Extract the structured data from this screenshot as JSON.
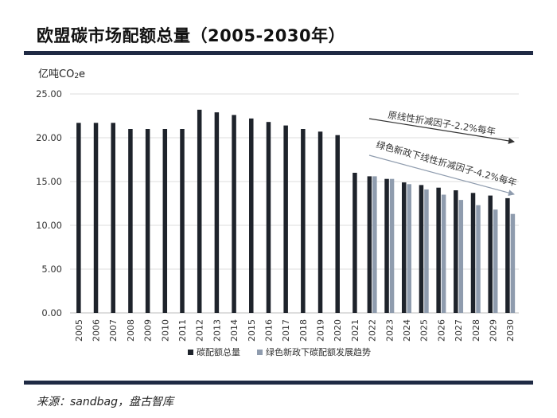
{
  "header": {
    "title": "欧盟碳市场配额总量（2005-2030年）"
  },
  "footer": {
    "source": "来源：sandbag，盘古智库"
  },
  "chart_data": {
    "type": "bar",
    "ylabel_main": "亿吨CO",
    "ylabel_sub": "2",
    "ylabel_tail": "e",
    "ylim": [
      0,
      25
    ],
    "yticks": [
      "0.00",
      "5.00",
      "10.00",
      "15.00",
      "20.00",
      "25.00"
    ],
    "grid": true,
    "legend_position": "bottom",
    "categories": [
      "2005",
      "2006",
      "2007",
      "2008",
      "2009",
      "2010",
      "2011",
      "2012",
      "2013",
      "2014",
      "2015",
      "2016",
      "2017",
      "2018",
      "2019",
      "2020",
      "2021",
      "2022",
      "2023",
      "2024",
      "2025",
      "2026",
      "2027",
      "2028",
      "2029",
      "2030"
    ],
    "series": [
      {
        "name": "碳配额总量",
        "color": "#1e232b",
        "values": [
          21.7,
          21.7,
          21.7,
          21.0,
          21.0,
          21.0,
          21.0,
          23.2,
          22.9,
          22.6,
          22.2,
          21.8,
          21.4,
          21.0,
          20.7,
          20.3,
          16.0,
          15.6,
          15.3,
          14.9,
          14.6,
          14.3,
          14.0,
          13.7,
          13.4,
          13.1
        ]
      },
      {
        "name": "绿色新政下碳配额发展趋势",
        "color": "#8f9cae",
        "values": [
          null,
          null,
          null,
          null,
          null,
          null,
          null,
          null,
          null,
          null,
          null,
          null,
          null,
          null,
          null,
          null,
          null,
          15.6,
          15.3,
          14.7,
          14.1,
          13.5,
          12.9,
          12.3,
          11.8,
          11.3
        ]
      }
    ],
    "annotations": [
      {
        "text": "原线性折减因子-2.2%每年",
        "color": "#333333"
      },
      {
        "text": "绿色新政下线性折减因子-4.2%每年",
        "color": "#8f9cae"
      }
    ]
  }
}
